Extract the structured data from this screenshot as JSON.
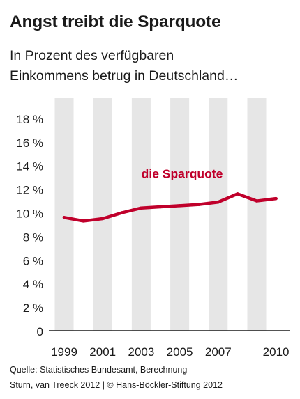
{
  "title": "Angst treibt die Sparquote",
  "subtitle_lines": [
    "In Prozent des verfügbaren",
    "Einkommens betrug in Deutschland…"
  ],
  "source_lines": [
    "Quelle: Statistisches Bundesamt, Berechnung",
    "Sturn, van Treeck 2012 | © Hans-Böckler-Stiftung 2012"
  ],
  "colors": {
    "line": "#c0002b",
    "band": "#e6e6e6",
    "axis": "#1a1a1a",
    "text": "#1a1a1a"
  },
  "chart_data": {
    "type": "line",
    "x": [
      1999,
      2000,
      2001,
      2002,
      2003,
      2004,
      2005,
      2006,
      2007,
      2008,
      2009,
      2010
    ],
    "series": [
      {
        "name": "die Sparquote",
        "values": [
          9.6,
          9.3,
          9.5,
          10.0,
          10.4,
          10.5,
          10.6,
          10.7,
          10.9,
          11.6,
          11.0,
          11.2
        ]
      }
    ],
    "ylim": [
      0,
      19
    ],
    "y_ticks": [
      0,
      2,
      4,
      6,
      8,
      10,
      12,
      14,
      16,
      18
    ],
    "y_tick_labels": [
      "0",
      "2 %",
      "4 %",
      "6 %",
      "8 %",
      "10 %",
      "12 %",
      "14 %",
      "16 %",
      "18 %"
    ],
    "x_tick_labels": [
      "1999",
      "2001",
      "2003",
      "2005",
      "2007",
      "2010"
    ],
    "shaded_years": [
      1999,
      2001,
      2003,
      2005,
      2007,
      2009
    ],
    "grid": false,
    "legend": "inline-label"
  }
}
